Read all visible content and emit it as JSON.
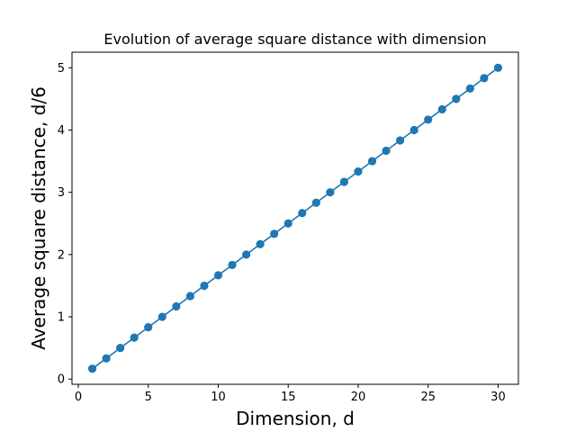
{
  "chart_data": {
    "type": "line",
    "title": "Evolution of average square distance with dimension",
    "xlabel": "Dimension, d",
    "ylabel": "Average square distance, d/6",
    "xlim": [
      -0.45,
      31.45
    ],
    "ylim": [
      -0.0833,
      5.25
    ],
    "xticks": [
      0,
      5,
      10,
      15,
      20,
      25,
      30
    ],
    "yticks": [
      0,
      1,
      2,
      3,
      4,
      5
    ],
    "grid": false,
    "legend": "none",
    "series": [
      {
        "color": "#1f77b4",
        "marker": "circle",
        "x": [
          1,
          2,
          3,
          4,
          5,
          6,
          7,
          8,
          9,
          10,
          11,
          12,
          13,
          14,
          15,
          16,
          17,
          18,
          19,
          20,
          21,
          22,
          23,
          24,
          25,
          26,
          27,
          28,
          29,
          30
        ],
        "y": [
          0.167,
          0.333,
          0.5,
          0.667,
          0.833,
          1.0,
          1.167,
          1.333,
          1.5,
          1.667,
          1.833,
          2.0,
          2.167,
          2.333,
          2.5,
          2.667,
          2.833,
          3.0,
          3.167,
          3.333,
          3.5,
          3.667,
          3.833,
          4.0,
          4.167,
          4.333,
          4.5,
          4.667,
          4.833,
          5.0
        ]
      }
    ]
  }
}
